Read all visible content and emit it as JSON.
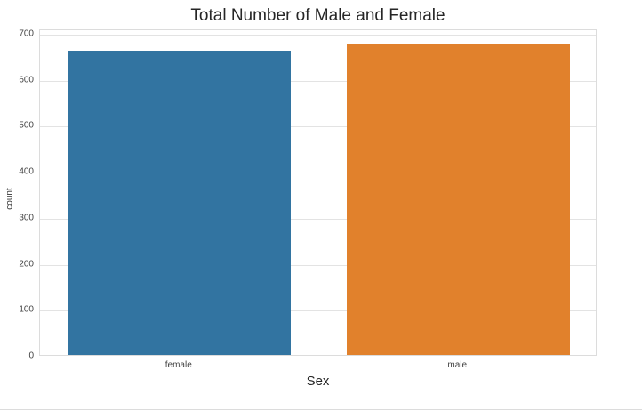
{
  "chart_data": {
    "type": "bar",
    "title": "Total Number of Male and Female",
    "xlabel": "Sex",
    "ylabel": "count",
    "categories": [
      "female",
      "male"
    ],
    "values": [
      662,
      676
    ],
    "colors": [
      "#3274a1",
      "#e1812c"
    ],
    "ylim": [
      0,
      710
    ],
    "yticks": [
      0,
      100,
      200,
      300,
      400,
      500,
      600,
      700
    ],
    "grid": true,
    "legend": null
  }
}
